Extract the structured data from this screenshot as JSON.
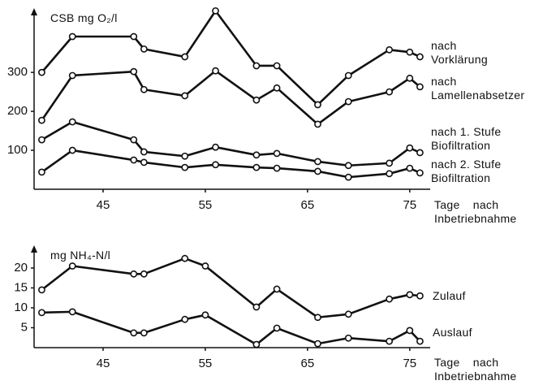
{
  "chart_data": [
    {
      "type": "line",
      "y_label": "CSB mg O₂/l",
      "x_label": "Tage nach Inbetriebnahme",
      "x": [
        39,
        42,
        48,
        49,
        53,
        56,
        60,
        62,
        66,
        69,
        73,
        75,
        76
      ],
      "series": [
        {
          "name": "nach Vorklärung",
          "color": "#111111",
          "values": [
            300,
            392,
            392,
            360,
            340,
            458,
            317,
            317,
            217,
            292,
            358,
            352,
            340
          ]
        },
        {
          "name": "nach Lamellenabsetzer",
          "color": "#111111",
          "values": [
            177,
            292,
            302,
            256,
            240,
            304,
            229,
            260,
            167,
            225,
            250,
            285,
            263
          ]
        },
        {
          "name": "nach 1. Stufe Biofiltration",
          "color": "#111111",
          "values": [
            127,
            173,
            127,
            96,
            85,
            108,
            88,
            92,
            71,
            61,
            67,
            106,
            94
          ]
        },
        {
          "name": "nach 2. Stufe Biofiltration",
          "color": "#111111",
          "values": [
            44,
            100,
            75,
            69,
            56,
            63,
            56,
            54,
            46,
            31,
            40,
            54,
            42
          ]
        }
      ],
      "xlim": [
        38.25,
        77
      ],
      "ylim": [
        0,
        465
      ],
      "xticks": [
        45,
        55,
        65,
        75
      ],
      "yticks": [
        100,
        200,
        300
      ]
    },
    {
      "type": "line",
      "y_label": "mg NH₄-N/l",
      "x_label": "Tage nach Inbetriebnahme",
      "x": [
        39,
        42,
        48,
        49,
        53,
        55,
        60,
        62,
        66,
        69,
        73,
        75,
        76
      ],
      "series": [
        {
          "name": "Zulauf",
          "color": "#111111",
          "values": [
            14.5,
            20.5,
            18.5,
            18.5,
            22.4,
            20.5,
            10.2,
            14.7,
            7.6,
            8.4,
            12.2,
            13.3,
            13
          ]
        },
        {
          "name": "Auslauf",
          "color": "#111111",
          "values": [
            8.8,
            9,
            3.7,
            3.7,
            7.1,
            8.2,
            0.8,
            4.9,
            1,
            2.4,
            1.6,
            4.3,
            1.6
          ]
        }
      ],
      "xlim": [
        38.25,
        77
      ],
      "ylim": [
        0,
        25.7
      ],
      "xticks": [
        45,
        55,
        65,
        75
      ],
      "yticks": [
        5,
        10,
        15,
        20
      ]
    }
  ]
}
